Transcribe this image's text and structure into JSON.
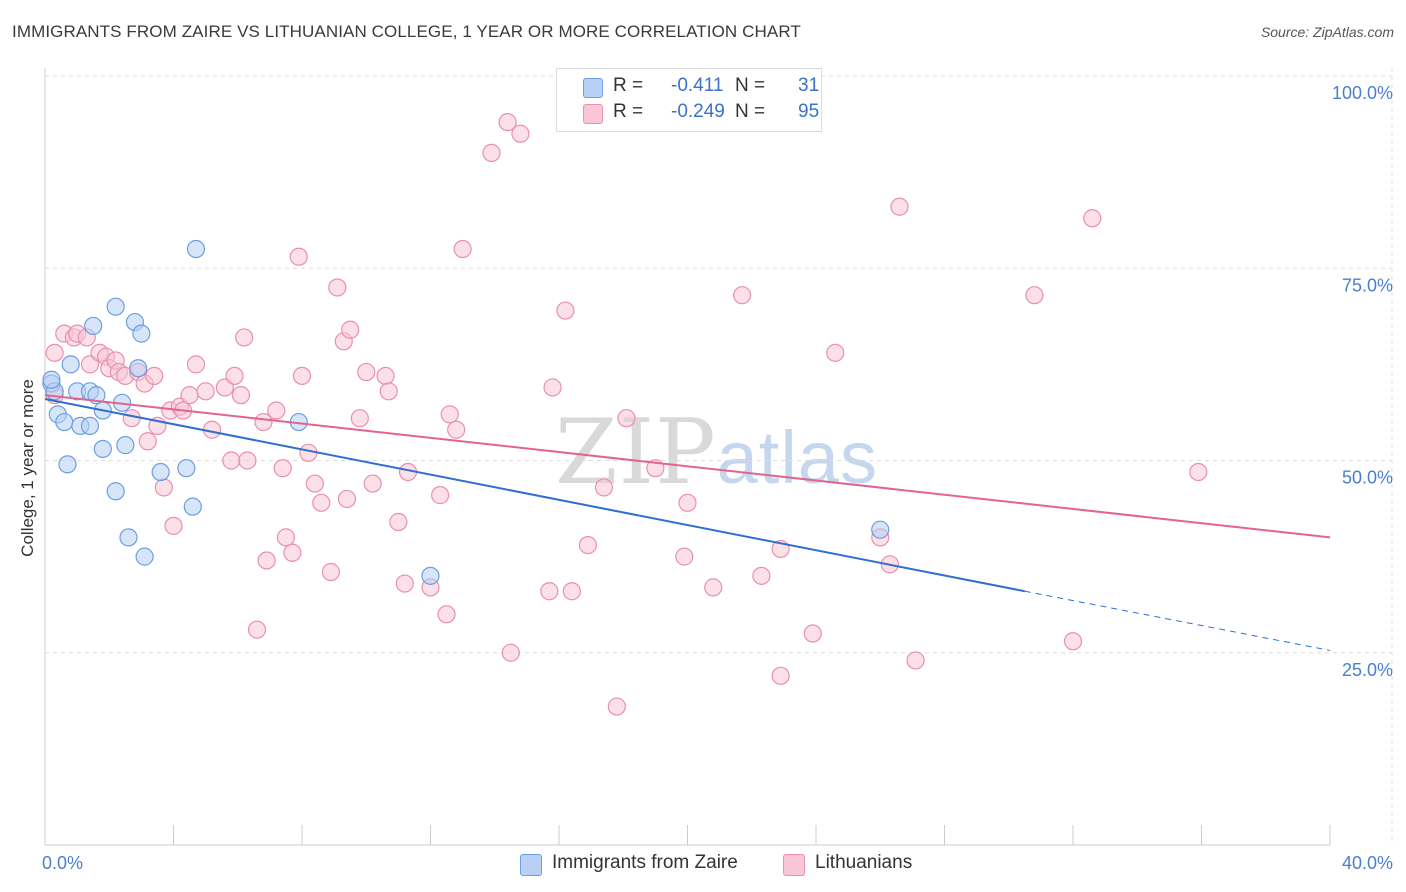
{
  "title": "IMMIGRANTS FROM ZAIRE VS LITHUANIAN COLLEGE, 1 YEAR OR MORE CORRELATION CHART",
  "source": "Source: ZipAtlas.com",
  "watermark": {
    "zip": "ZIP",
    "atlas": "atlas"
  },
  "colors": {
    "blue_fill": "#b7d0f4",
    "blue_stroke": "#6d9ee0",
    "blue_line": "#2f6fd1",
    "pink_fill": "#f8c6d6",
    "pink_stroke": "#ea8fae",
    "pink_line": "#e2648e",
    "grid": "#dddddd",
    "axis_text": "#4a7fd0"
  },
  "stats": {
    "blue": {
      "r_label": "R =",
      "r_value": "-0.411",
      "n_label": "N =",
      "n_value": "31"
    },
    "pink": {
      "r_label": "R =",
      "r_value": "-0.249",
      "n_label": "N =",
      "n_value": "95"
    }
  },
  "chart_data": {
    "type": "scatter",
    "title": "IMMIGRANTS FROM ZAIRE VS LITHUANIAN COLLEGE, 1 YEAR OR MORE CORRELATION CHART",
    "xlabel": "",
    "ylabel": "College, 1 year or more",
    "xlim": [
      0,
      40
    ],
    "ylim": [
      0,
      100
    ],
    "x_tick_labels": [
      "0.0%",
      "40.0%"
    ],
    "y_ticks": [
      25,
      50,
      75,
      100
    ],
    "y_tick_labels": [
      "25.0%",
      "50.0%",
      "75.0%",
      "100.0%"
    ],
    "grid": true,
    "legend_position": "bottom",
    "series": [
      {
        "name": "Immigrants from Zaire",
        "color": "blue",
        "trend": {
          "x0": 0,
          "y0": 58.0,
          "x1": 30.5,
          "y1": 33.0,
          "dash_x1": 40,
          "dash_y1": 25.3
        },
        "points": [
          [
            0.2,
            60.0
          ],
          [
            0.3,
            59.0
          ],
          [
            0.4,
            56.0
          ],
          [
            0.6,
            55.0
          ],
          [
            0.7,
            49.5
          ],
          [
            0.8,
            62.5
          ],
          [
            1.0,
            59.0
          ],
          [
            1.1,
            54.5
          ],
          [
            1.4,
            59.0
          ],
          [
            1.4,
            54.5
          ],
          [
            1.5,
            67.5
          ],
          [
            1.6,
            58.5
          ],
          [
            1.8,
            51.5
          ],
          [
            1.8,
            56.5
          ],
          [
            2.2,
            70.0
          ],
          [
            2.2,
            46.0
          ],
          [
            2.4,
            57.5
          ],
          [
            2.5,
            52.0
          ],
          [
            2.6,
            40.0
          ],
          [
            2.8,
            68.0
          ],
          [
            2.9,
            62.0
          ],
          [
            3.0,
            66.5
          ],
          [
            3.1,
            37.5
          ],
          [
            3.6,
            48.5
          ],
          [
            4.4,
            49.0
          ],
          [
            4.6,
            44.0
          ],
          [
            4.7,
            77.5
          ],
          [
            7.9,
            55.0
          ],
          [
            12.0,
            35.0
          ],
          [
            26.0,
            41.0
          ],
          [
            0.2,
            60.5
          ]
        ]
      },
      {
        "name": "Lithuanians",
        "color": "pink",
        "trend": {
          "x0": 0,
          "y0": 58.5,
          "x1": 40,
          "y1": 40.0
        },
        "points": [
          [
            0.3,
            64.0
          ],
          [
            0.3,
            58.5
          ],
          [
            0.6,
            66.5
          ],
          [
            0.9,
            66.0
          ],
          [
            1.0,
            66.5
          ],
          [
            1.3,
            66.0
          ],
          [
            1.4,
            62.5
          ],
          [
            1.7,
            64.0
          ],
          [
            1.9,
            63.5
          ],
          [
            2.0,
            62.0
          ],
          [
            2.2,
            63.0
          ],
          [
            2.3,
            61.5
          ],
          [
            2.5,
            61.0
          ],
          [
            2.7,
            55.5
          ],
          [
            2.9,
            61.5
          ],
          [
            3.1,
            60.0
          ],
          [
            3.2,
            52.5
          ],
          [
            3.4,
            61.0
          ],
          [
            3.5,
            54.5
          ],
          [
            3.7,
            46.5
          ],
          [
            3.9,
            56.5
          ],
          [
            4.0,
            41.5
          ],
          [
            4.2,
            57.0
          ],
          [
            4.3,
            56.5
          ],
          [
            4.5,
            58.5
          ],
          [
            4.7,
            62.5
          ],
          [
            5.0,
            59.0
          ],
          [
            5.2,
            54.0
          ],
          [
            5.6,
            59.5
          ],
          [
            5.8,
            50.0
          ],
          [
            5.9,
            61.0
          ],
          [
            6.1,
            58.5
          ],
          [
            6.2,
            66.0
          ],
          [
            6.3,
            50.0
          ],
          [
            6.6,
            28.0
          ],
          [
            6.8,
            55.0
          ],
          [
            6.9,
            37.0
          ],
          [
            7.2,
            56.5
          ],
          [
            7.4,
            49.0
          ],
          [
            7.5,
            40.0
          ],
          [
            7.7,
            38.0
          ],
          [
            7.9,
            76.5
          ],
          [
            8.0,
            61.0
          ],
          [
            8.2,
            51.0
          ],
          [
            8.4,
            47.0
          ],
          [
            8.6,
            44.5
          ],
          [
            8.9,
            35.5
          ],
          [
            9.1,
            72.5
          ],
          [
            9.3,
            65.5
          ],
          [
            9.4,
            45.0
          ],
          [
            9.5,
            67.0
          ],
          [
            9.8,
            55.5
          ],
          [
            10.0,
            61.5
          ],
          [
            10.2,
            47.0
          ],
          [
            10.6,
            61.0
          ],
          [
            10.7,
            59.0
          ],
          [
            11.0,
            42.0
          ],
          [
            11.2,
            34.0
          ],
          [
            11.3,
            48.5
          ],
          [
            12.0,
            33.5
          ],
          [
            12.3,
            45.5
          ],
          [
            12.5,
            30.0
          ],
          [
            12.6,
            56.0
          ],
          [
            12.8,
            54.0
          ],
          [
            13.0,
            77.5
          ],
          [
            13.9,
            90.0
          ],
          [
            14.4,
            94.0
          ],
          [
            14.5,
            25.0
          ],
          [
            14.8,
            92.5
          ],
          [
            15.7,
            33.0
          ],
          [
            15.8,
            59.5
          ],
          [
            16.2,
            69.5
          ],
          [
            16.4,
            33.0
          ],
          [
            16.9,
            39.0
          ],
          [
            17.4,
            46.5
          ],
          [
            17.8,
            18.0
          ],
          [
            18.1,
            55.5
          ],
          [
            19.0,
            49.0
          ],
          [
            19.9,
            37.5
          ],
          [
            20.0,
            44.5
          ],
          [
            20.8,
            33.5
          ],
          [
            21.7,
            71.5
          ],
          [
            22.3,
            35.0
          ],
          [
            22.9,
            22.0
          ],
          [
            22.9,
            38.5
          ],
          [
            23.9,
            27.5
          ],
          [
            24.6,
            64.0
          ],
          [
            26.0,
            40.0
          ],
          [
            26.3,
            36.5
          ],
          [
            26.6,
            83.0
          ],
          [
            27.1,
            24.0
          ],
          [
            30.8,
            71.5
          ],
          [
            32.0,
            26.5
          ],
          [
            32.6,
            81.5
          ],
          [
            35.9,
            48.5
          ]
        ]
      }
    ]
  }
}
